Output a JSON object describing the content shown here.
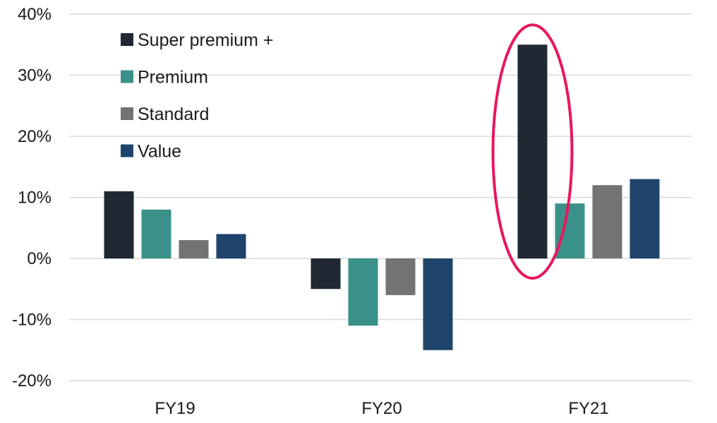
{
  "chart_data": {
    "type": "bar",
    "title": "",
    "xlabel": "",
    "ylabel": "",
    "categories": [
      "FY19",
      "FY20",
      "FY21"
    ],
    "ylim": [
      -20,
      40
    ],
    "yticks": [
      40,
      30,
      20,
      10,
      0,
      -10,
      -20
    ],
    "ytick_labels": [
      "40%",
      "30%",
      "20%",
      "10%",
      "0%",
      "-10%",
      "-20%"
    ],
    "grid": true,
    "legend_position": "top-left",
    "series": [
      {
        "name": "Super premium +",
        "color": "#1f2833",
        "values": [
          11,
          -5,
          35
        ]
      },
      {
        "name": "Premium",
        "color": "#3a9189",
        "values": [
          8,
          -11,
          9
        ]
      },
      {
        "name": "Standard",
        "color": "#737373",
        "values": [
          3,
          -6,
          12
        ]
      },
      {
        "name": "Value",
        "color": "#1e446b",
        "values": [
          4,
          -15,
          13
        ]
      }
    ],
    "annotation": {
      "type": "ellipse",
      "color": "#e8175d",
      "target_category": "FY21",
      "target_series": "Super premium +"
    }
  }
}
